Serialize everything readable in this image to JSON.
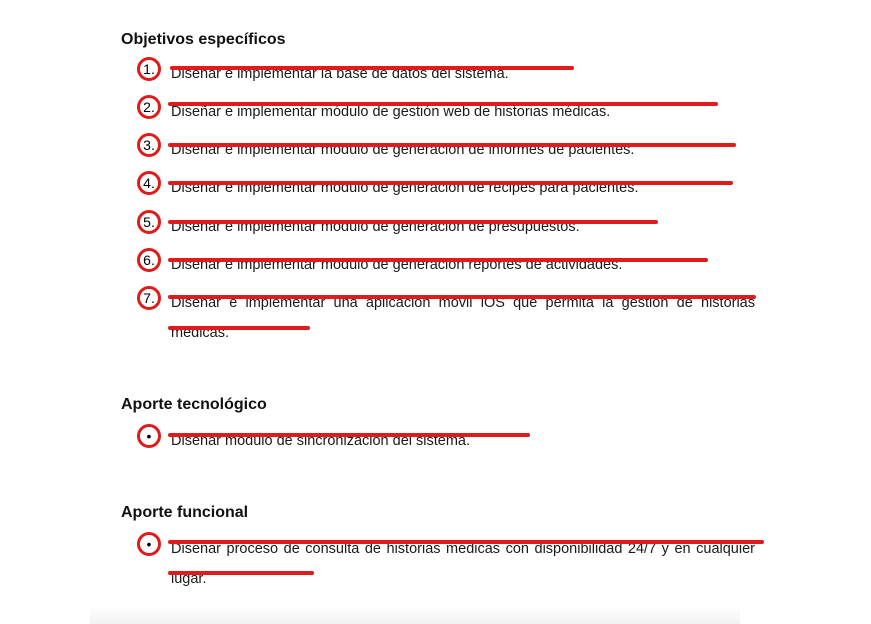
{
  "sections": {
    "objetivos": {
      "title": "Objetivos específicos",
      "items": [
        {
          "marker": "1.",
          "text": "Diseñar e implementar la base de datos del sistema."
        },
        {
          "marker": "2.",
          "text": "Diseñar e implementar módulo de gestión web de historias médicas."
        },
        {
          "marker": "3.",
          "text": "Diseñar e implementar módulo de generación de informes de pacientes."
        },
        {
          "marker": "4.",
          "text": "Diseñar e implementar módulo de generación de récipes para pacientes."
        },
        {
          "marker": "5.",
          "text": "Diseñar e implementar módulo de generación de presupuestos."
        },
        {
          "marker": "6.",
          "text": "Diseñar e implementar módulo de generación reportes de actividades."
        },
        {
          "marker": "7.",
          "text": "Diseñar e implementar una aplicación móvil iOS que permita la gestión de historias médicas."
        }
      ]
    },
    "tecnologico": {
      "title": "Aporte tecnológico",
      "items": [
        {
          "marker": "•",
          "text": "Diseñar módulo de sincronización del sistema."
        }
      ]
    },
    "funcional": {
      "title": "Aporte funcional",
      "items": [
        {
          "marker": "•",
          "text": "Diseñar proceso de consulta de historias médicas con disponibilidad 24/7 y en cualquier lugar."
        }
      ]
    }
  },
  "annotation_color": "#e01b1b"
}
